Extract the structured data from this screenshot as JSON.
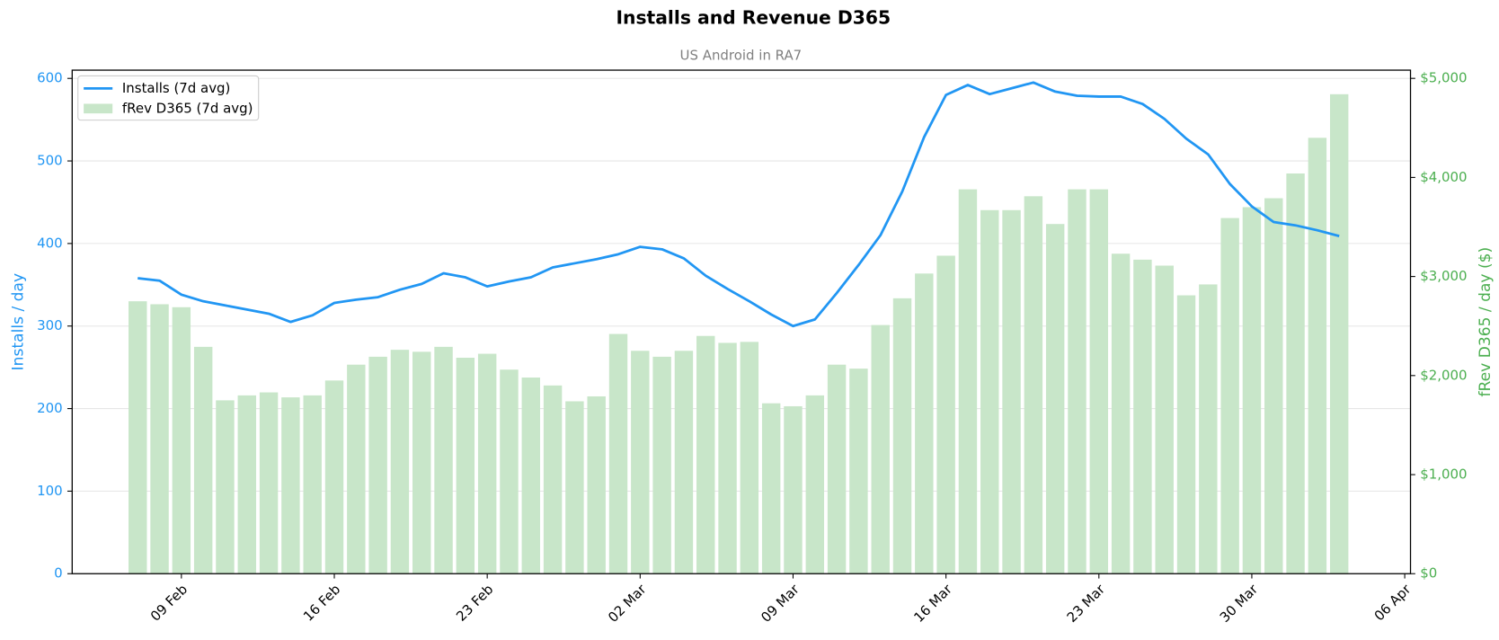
{
  "chart_data": {
    "type": "combo",
    "title": "Installs and Revenue D365",
    "subtitle": "US Android in RA7",
    "ylabel": "Installs / day",
    "y2label": "fRev D365 / day ($)",
    "x": [
      "07 Feb",
      "08 Feb",
      "09 Feb",
      "10 Feb",
      "11 Feb",
      "12 Feb",
      "13 Feb",
      "14 Feb",
      "15 Feb",
      "16 Feb",
      "17 Feb",
      "18 Feb",
      "19 Feb",
      "20 Feb",
      "21 Feb",
      "22 Feb",
      "23 Feb",
      "24 Feb",
      "25 Feb",
      "26 Feb",
      "27 Feb",
      "28 Feb",
      "01 Mar",
      "02 Mar",
      "03 Mar",
      "04 Mar",
      "05 Mar",
      "06 Mar",
      "07 Mar",
      "08 Mar",
      "09 Mar",
      "10 Mar",
      "11 Mar",
      "12 Mar",
      "13 Mar",
      "14 Mar",
      "15 Mar",
      "16 Mar",
      "17 Mar",
      "18 Mar",
      "19 Mar",
      "20 Mar",
      "21 Mar",
      "22 Mar",
      "23 Mar",
      "24 Mar",
      "25 Mar",
      "26 Mar",
      "27 Mar",
      "28 Mar",
      "29 Mar",
      "30 Mar",
      "31 Mar",
      "01 Apr",
      "02 Apr",
      "03 Apr"
    ],
    "series": [
      {
        "name": "fRev D365 (7d avg)",
        "type": "bar",
        "axis": "y2",
        "color": "#c8e6c9",
        "values": [
          2750,
          2720,
          2690,
          2290,
          1750,
          1800,
          1830,
          1780,
          1800,
          1950,
          2110,
          2190,
          2260,
          2240,
          2290,
          2180,
          2220,
          2060,
          1980,
          1900,
          1740,
          1790,
          2420,
          2250,
          2190,
          2250,
          2400,
          2330,
          2340,
          1720,
          1690,
          1800,
          2110,
          2070,
          2510,
          2780,
          3030,
          3210,
          3880,
          3670,
          3670,
          3810,
          3530,
          3880,
          3880,
          3230,
          3170,
          3110,
          2810,
          2920,
          3590,
          3700,
          3790,
          4040,
          4400,
          4840
        ]
      },
      {
        "name": "Installs (7d avg)",
        "type": "line",
        "axis": "y",
        "color": "#2196f3",
        "values": [
          358,
          355,
          338,
          330,
          325,
          320,
          315,
          305,
          313,
          328,
          332,
          335,
          344,
          351,
          364,
          359,
          348,
          354,
          359,
          371,
          376,
          381,
          387,
          396,
          393,
          382,
          361,
          345,
          330,
          314,
          300,
          308,
          340,
          374,
          410,
          463,
          529,
          580,
          592,
          581,
          588,
          595,
          584,
          579,
          578,
          578,
          569,
          551,
          527,
          508,
          472,
          445,
          426,
          422,
          416,
          409
        ]
      }
    ],
    "xlim": [
      "04 Feb",
      "06 Apr"
    ],
    "xticks": [
      "09 Feb",
      "16 Feb",
      "23 Feb",
      "02 Mar",
      "09 Mar",
      "16 Mar",
      "23 Mar",
      "30 Mar",
      "06 Apr"
    ],
    "ylim": [
      0,
      610
    ],
    "yticks": [
      0,
      100,
      200,
      300,
      400,
      500,
      600
    ],
    "y2lim": [
      0,
      5083
    ],
    "y2ticks": [
      {
        "value": 0,
        "label": "$0"
      },
      {
        "value": 1000,
        "label": "$1,000"
      },
      {
        "value": 2000,
        "label": "$2,000"
      },
      {
        "value": 3000,
        "label": "$3,000"
      },
      {
        "value": 4000,
        "label": "$4,000"
      },
      {
        "value": 5000,
        "label": "$5,000"
      }
    ],
    "ycolor": "#2196f3",
    "y2color": "#4caf50",
    "grid": true,
    "legend": "upper-left"
  }
}
